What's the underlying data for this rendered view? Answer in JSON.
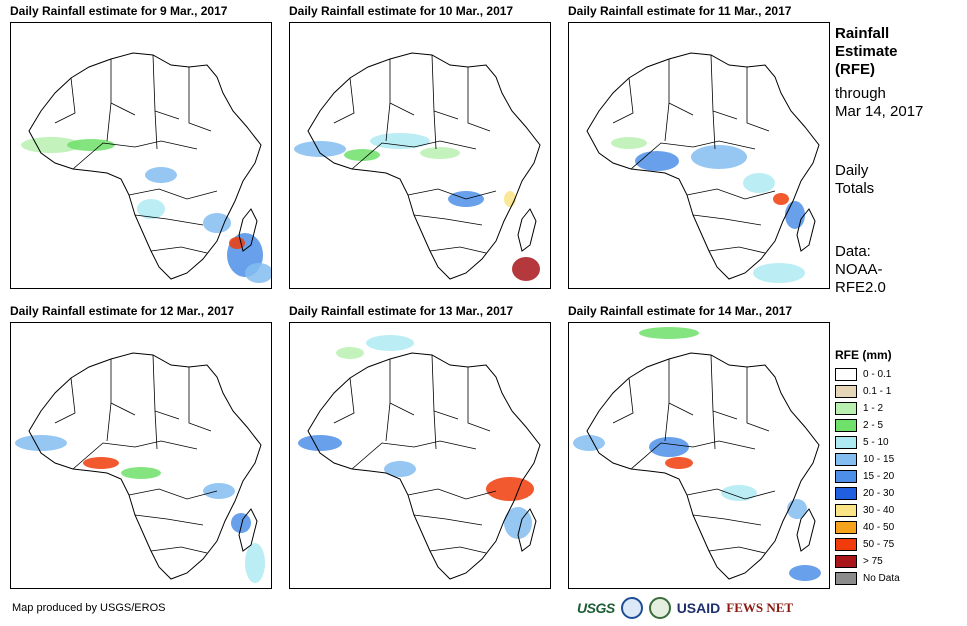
{
  "panels": [
    {
      "title": "Daily Rainfall estimate for 9 Mar., 2017"
    },
    {
      "title": "Daily Rainfall estimate for 10 Mar., 2017"
    },
    {
      "title": "Daily Rainfall estimate for 11 Mar., 2017"
    },
    {
      "title": "Daily Rainfall estimate for 12 Mar., 2017"
    },
    {
      "title": "Daily Rainfall estimate for 13 Mar., 2017"
    },
    {
      "title": "Daily Rainfall estimate for 14 Mar., 2017"
    }
  ],
  "sidebar": {
    "title_line1": "Rainfall",
    "title_line2": "Estimate",
    "title_line3": "(RFE)",
    "through_label": "through",
    "through_date": "Mar 14, 2017",
    "totals_line1": "Daily",
    "totals_line2": "Totals",
    "data_line1": "Data:",
    "data_line2": "NOAA-",
    "data_line3": "RFE2.0"
  },
  "legend": {
    "title": "RFE (mm)",
    "items": [
      {
        "label": "0 - 0.1",
        "color": "#ffffff"
      },
      {
        "label": "0.1 - 1",
        "color": "#e6d6b8"
      },
      {
        "label": "1 - 2",
        "color": "#b9f0b0"
      },
      {
        "label": "2 - 5",
        "color": "#6fe06a"
      },
      {
        "label": "5 - 10",
        "color": "#aeeaf2"
      },
      {
        "label": "10 - 15",
        "color": "#84bdf0"
      },
      {
        "label": "15 - 20",
        "color": "#4d8fe8"
      },
      {
        "label": "20 - 30",
        "color": "#1f5fe0"
      },
      {
        "label": "30 - 40",
        "color": "#f9e486"
      },
      {
        "label": "40 - 50",
        "color": "#f5a21d"
      },
      {
        "label": "50 - 75",
        "color": "#f03c0a"
      },
      {
        "label": "> 75",
        "color": "#a8161a"
      },
      {
        "label": "No Data",
        "color": "#8c8c8c"
      }
    ]
  },
  "footer": {
    "credit": "Map produced by USGS/EROS",
    "logos": [
      "USGS",
      "NOAA",
      "DOI",
      "USAID",
      "FEWS NET"
    ]
  }
}
